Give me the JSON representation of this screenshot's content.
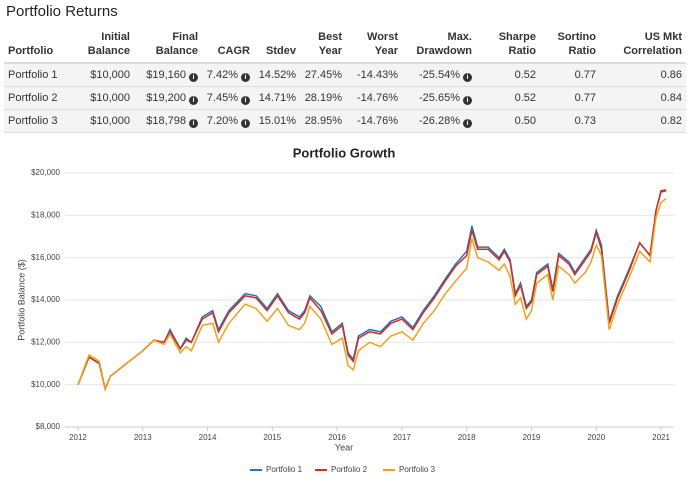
{
  "header": {
    "title": "Portfolio Returns"
  },
  "table": {
    "columns": [
      "Portfolio",
      "Initial Balance",
      "Final Balance",
      "CAGR",
      "Stdev",
      "Best Year",
      "Worst Year",
      "Max. Drawdown",
      "Sharpe Ratio",
      "Sortino Ratio",
      "US Mkt Correlation"
    ],
    "rows": [
      [
        "Portfolio 1",
        "$10,000",
        "$19,160",
        "7.42%",
        "14.52%",
        "27.45%",
        "-14.43%",
        "-25.54%",
        "0.52",
        "0.77",
        "0.86"
      ],
      [
        "Portfolio 2",
        "$10,000",
        "$19,200",
        "7.45%",
        "14.71%",
        "28.19%",
        "-14.76%",
        "-25.65%",
        "0.52",
        "0.77",
        "0.84"
      ],
      [
        "Portfolio 3",
        "$10,000",
        "$18,798",
        "7.20%",
        "15.01%",
        "28.95%",
        "-14.76%",
        "-26.28%",
        "0.50",
        "0.73",
        "0.82"
      ]
    ]
  },
  "chart_data": {
    "type": "line",
    "title": "Portfolio Growth",
    "xlabel": "Year",
    "ylabel": "Portfolio Balance ($)",
    "x": [
      2012.0,
      2012.17,
      2012.33,
      2012.42,
      2012.5,
      2012.75,
      2013.0,
      2013.17,
      2013.33,
      2013.42,
      2013.58,
      2013.67,
      2013.75,
      2013.92,
      2014.08,
      2014.17,
      2014.33,
      2014.58,
      2014.75,
      2014.92,
      2015.08,
      2015.25,
      2015.42,
      2015.5,
      2015.58,
      2015.75,
      2015.92,
      2016.08,
      2016.17,
      2016.25,
      2016.33,
      2016.5,
      2016.67,
      2016.83,
      2017.0,
      2017.17,
      2017.33,
      2017.5,
      2017.67,
      2017.83,
      2018.0,
      2018.08,
      2018.17,
      2018.33,
      2018.5,
      2018.58,
      2018.67,
      2018.75,
      2018.83,
      2018.92,
      2019.0,
      2019.08,
      2019.25,
      2019.33,
      2019.42,
      2019.58,
      2019.67,
      2019.83,
      2019.92,
      2020.0,
      2020.08,
      2020.2,
      2020.33,
      2020.5,
      2020.67,
      2020.83,
      2020.92,
      2021.0,
      2021.08
    ],
    "series": [
      {
        "name": "Portfolio 1",
        "color": "#2f6fbf",
        "values": [
          10000,
          11300,
          11000,
          9800,
          10400,
          11000,
          11600,
          12100,
          12000,
          12600,
          11700,
          12200,
          12000,
          13200,
          13500,
          12600,
          13500,
          14300,
          14200,
          13600,
          14300,
          13500,
          13200,
          13500,
          14200,
          13700,
          12500,
          12900,
          11500,
          11200,
          12300,
          12600,
          12500,
          13000,
          13200,
          12700,
          13500,
          14200,
          15000,
          15700,
          16300,
          17500,
          16500,
          16500,
          16000,
          16400,
          15900,
          14300,
          14800,
          13700,
          14000,
          15300,
          15700,
          14500,
          16200,
          15800,
          15300,
          16000,
          16400,
          17300,
          16600,
          13000,
          14200,
          15400,
          16700,
          16100,
          18200,
          19100,
          19160
        ]
      },
      {
        "name": "Portfolio 2",
        "color": "#c8321e",
        "values": [
          10000,
          11300,
          11000,
          9800,
          10400,
          11000,
          11600,
          12100,
          12000,
          12500,
          11700,
          12100,
          12000,
          13100,
          13400,
          12500,
          13400,
          14200,
          14100,
          13500,
          14200,
          13400,
          13100,
          13400,
          14100,
          13500,
          12400,
          12800,
          11400,
          11100,
          12200,
          12500,
          12400,
          12900,
          13100,
          12600,
          13400,
          14100,
          14900,
          15600,
          16100,
          17300,
          16400,
          16400,
          15900,
          16300,
          15800,
          14200,
          14700,
          13600,
          13900,
          15200,
          15600,
          14400,
          16100,
          15700,
          15200,
          15900,
          16300,
          17200,
          16400,
          12900,
          14100,
          15300,
          16700,
          16100,
          18200,
          19160,
          19200
        ]
      },
      {
        "name": "Portfolio 3",
        "color": "#f0a020",
        "values": [
          10000,
          11400,
          11100,
          9800,
          10400,
          11000,
          11600,
          12100,
          11900,
          12400,
          11500,
          11800,
          11600,
          12800,
          12900,
          12000,
          12900,
          13800,
          13600,
          13000,
          13600,
          12800,
          12600,
          12900,
          13700,
          13100,
          11900,
          12200,
          10900,
          10700,
          11600,
          12000,
          11800,
          12300,
          12500,
          12100,
          12900,
          13500,
          14300,
          14900,
          15500,
          16900,
          16000,
          15800,
          15400,
          15700,
          15100,
          13800,
          14100,
          13100,
          13500,
          14800,
          15200,
          14000,
          15600,
          15200,
          14800,
          15300,
          15800,
          16600,
          16100,
          12600,
          13800,
          15000,
          16300,
          15800,
          17900,
          18600,
          18798
        ]
      }
    ],
    "xlim": [
      2011.8,
      2021.2
    ],
    "xticks": [
      2012,
      2013,
      2014,
      2015,
      2016,
      2017,
      2018,
      2019,
      2020,
      2021
    ],
    "ylim": [
      8000,
      20000
    ],
    "yticks": [
      {
        "value": 8000,
        "label": "$8,000"
      },
      {
        "value": 10000,
        "label": "$10,000"
      },
      {
        "value": 12000,
        "label": "$12,000"
      },
      {
        "value": 14000,
        "label": "$14,000"
      },
      {
        "value": 16000,
        "label": "$16,000"
      },
      {
        "value": 18000,
        "label": "$18,000"
      },
      {
        "value": 20000,
        "label": "$20,000"
      }
    ],
    "grid": true,
    "legend": "bottom"
  }
}
